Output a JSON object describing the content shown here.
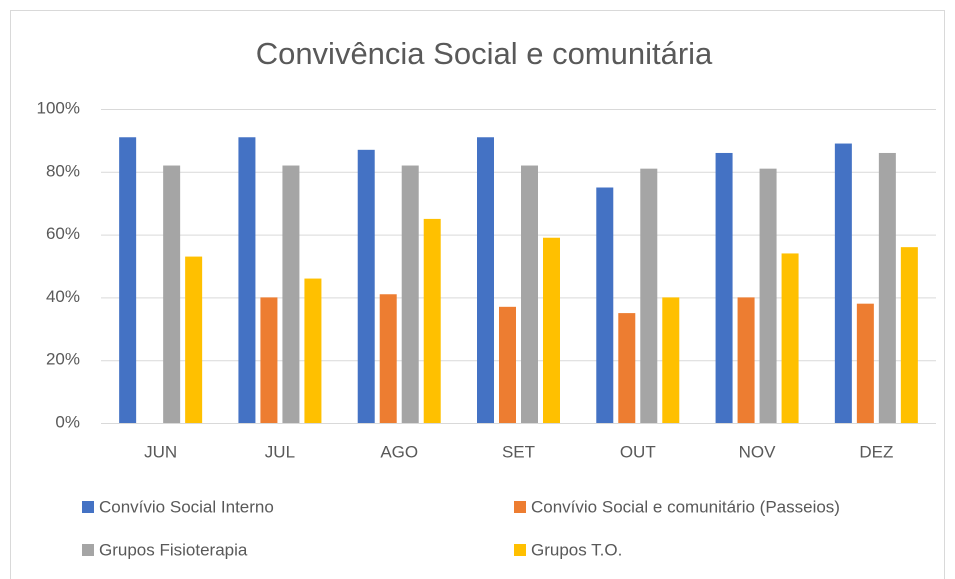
{
  "chart_data": {
    "type": "bar",
    "title": "Convivência Social e comunitária",
    "categories": [
      "JUN",
      "JUL",
      "AGO",
      "SET",
      "OUT",
      "NOV",
      "DEZ"
    ],
    "series": [
      {
        "name": "Convívio Social Interno",
        "color": "#4472c4",
        "values": [
          91,
          91,
          87,
          91,
          75,
          86,
          89
        ]
      },
      {
        "name": "Convívio Social e comunitário (Passeios)",
        "color": "#ed7d31",
        "values": [
          null,
          40,
          41,
          37,
          35,
          40,
          38
        ]
      },
      {
        "name": "Grupos Fisioterapia",
        "color": "#a5a5a5",
        "values": [
          82,
          82,
          82,
          82,
          81,
          81,
          86
        ]
      },
      {
        "name": "Grupos T.O.",
        "color": "#ffc000",
        "values": [
          53,
          46,
          65,
          59,
          40,
          54,
          56
        ]
      }
    ],
    "ylim": [
      0,
      100
    ],
    "yticks": [
      {
        "value": 0,
        "label": "0%"
      },
      {
        "value": 20,
        "label": "20%"
      },
      {
        "value": 40,
        "label": "40%"
      },
      {
        "value": 60,
        "label": "60%"
      },
      {
        "value": 80,
        "label": "80%"
      },
      {
        "value": 100,
        "label": "100%"
      }
    ],
    "grid": true,
    "legend": "bottom"
  }
}
